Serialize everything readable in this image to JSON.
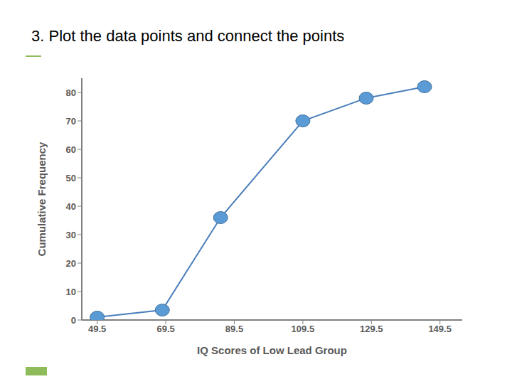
{
  "chart_data": {
    "type": "line",
    "title": "3. Plot the data points and connect the points",
    "x_label": "IQ Scores of Low Lead Group",
    "y_label": "Cumulative Frequency",
    "x": [
      49.5,
      68.5,
      85.5,
      109.5,
      128,
      145
    ],
    "values": [
      1,
      3.5,
      36,
      70,
      78,
      82
    ],
    "xlim": [
      45,
      156
    ],
    "ylim": [
      0,
      85
    ],
    "xticks": [
      49.5,
      69.5,
      89.5,
      109.5,
      129.5,
      149.5
    ],
    "yticks": [
      0,
      10,
      20,
      30,
      40,
      50,
      60,
      70,
      80
    ],
    "color": "#4a7ebb",
    "marker": "circle",
    "grid": false
  }
}
